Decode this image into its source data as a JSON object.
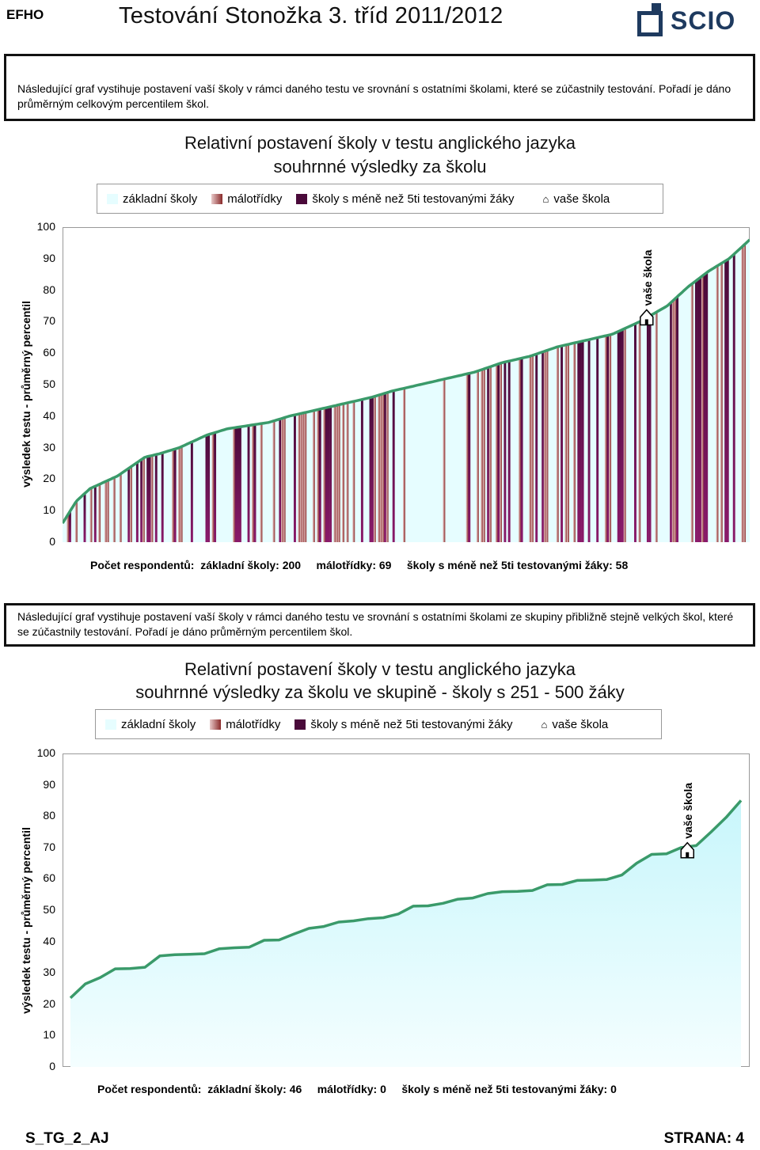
{
  "header": {
    "code": "EFHO",
    "title": "Testování Stonožka 3. tříd 2011/2012",
    "logo_text": "SCIO"
  },
  "info1": "Následující graf vystihuje postavení vaší školy v rámci daného testu ve srovnání s ostatními školami, které se zúčastnily testování. Pořadí je dáno průměrným celkovým percentilem škol.",
  "info2": "Následující graf vystihuje postavení vaší školy v rámci daného testu ve srovnání s ostatními školami ze skupiny přibližně stejně velkých škol, které se zúčastnily testování. Pořadí je dáno průměrným percentilem škol.",
  "legend": {
    "elementary": "základní školy",
    "small": "málotřídky",
    "few": "školy s méně než 5ti testovanými žáky",
    "your": "vaše škola"
  },
  "colors": {
    "line": "#3a9a6a",
    "elementary": "#e6fdff",
    "small_light": "#e8c9c9",
    "small_dark": "#8a2a2a",
    "few_top": "#4a0a3a",
    "few_bottom": "#8a1a6a"
  },
  "chart_data": [
    {
      "type": "bar",
      "title": "Relativní postavení školy v testu anglického jazyka",
      "subtitle": "souhrnné výsledky za školu",
      "ylabel": "výsledek testu - průměrný percentil",
      "ylim": [
        0,
        100
      ],
      "yticks": [
        "0",
        "10",
        "20",
        "30",
        "40",
        "50",
        "60",
        "70",
        "80",
        "90",
        "100"
      ],
      "your_school_label": "vaše škola",
      "your_school_value": 72,
      "your_school_rank_fraction": 0.85,
      "footer": "Počet respondentů:  základní školy: 200     málotřídky: 69     školy s méně než 5ti testovanými žáky: 58",
      "counts": {
        "elementary": 200,
        "small": 69,
        "few": 58
      },
      "curve": [
        [
          0,
          6
        ],
        [
          0.02,
          13
        ],
        [
          0.04,
          17
        ],
        [
          0.06,
          19
        ],
        [
          0.08,
          21
        ],
        [
          0.1,
          24
        ],
        [
          0.12,
          27
        ],
        [
          0.14,
          28
        ],
        [
          0.17,
          30
        ],
        [
          0.19,
          32
        ],
        [
          0.21,
          34
        ],
        [
          0.24,
          36
        ],
        [
          0.27,
          37
        ],
        [
          0.3,
          38
        ],
        [
          0.33,
          40
        ],
        [
          0.37,
          42
        ],
        [
          0.41,
          44
        ],
        [
          0.45,
          46
        ],
        [
          0.48,
          48
        ],
        [
          0.52,
          50
        ],
        [
          0.56,
          52
        ],
        [
          0.6,
          54
        ],
        [
          0.64,
          57
        ],
        [
          0.68,
          59
        ],
        [
          0.72,
          62
        ],
        [
          0.76,
          64
        ],
        [
          0.8,
          66
        ],
        [
          0.84,
          70
        ],
        [
          0.88,
          75
        ],
        [
          0.91,
          81
        ],
        [
          0.94,
          86
        ],
        [
          0.97,
          90
        ],
        [
          1.0,
          96
        ]
      ]
    },
    {
      "type": "area",
      "title": "Relativní postavení školy v testu anglického jazyka",
      "subtitle": "souhrnné výsledky za školu ve skupině - školy s 251 - 500 žáky",
      "ylabel": "výsledek testu - průměrný percentil",
      "ylim": [
        0,
        100
      ],
      "yticks": [
        "0",
        "10",
        "20",
        "30",
        "40",
        "50",
        "60",
        "70",
        "80",
        "90",
        "100"
      ],
      "your_school_label": "vaše škola",
      "your_school_value": 70,
      "your_school_rank_fraction": 0.92,
      "footer": "Počet respondentů:  základní školy: 46     málotřídky: 0     školy s méně než 5ti testovanými žáky: 0",
      "counts": {
        "elementary": 46,
        "small": 0,
        "few": 0
      },
      "values": [
        22,
        26.5,
        28.5,
        31.3,
        31.4,
        31.8,
        35.4,
        35.8,
        35.9,
        36.1,
        37.7,
        38,
        38.2,
        40.4,
        40.5,
        42.4,
        44.2,
        44.8,
        46.2,
        46.6,
        47.3,
        47.6,
        48.8,
        51.3,
        51.4,
        52.2,
        53.5,
        53.9,
        55.3,
        55.9,
        56,
        56.3,
        58.1,
        58.2,
        59.5,
        59.6,
        59.8,
        61.2,
        65,
        67.8,
        68,
        70,
        70.6,
        75,
        79.6,
        85
      ]
    }
  ]
}
